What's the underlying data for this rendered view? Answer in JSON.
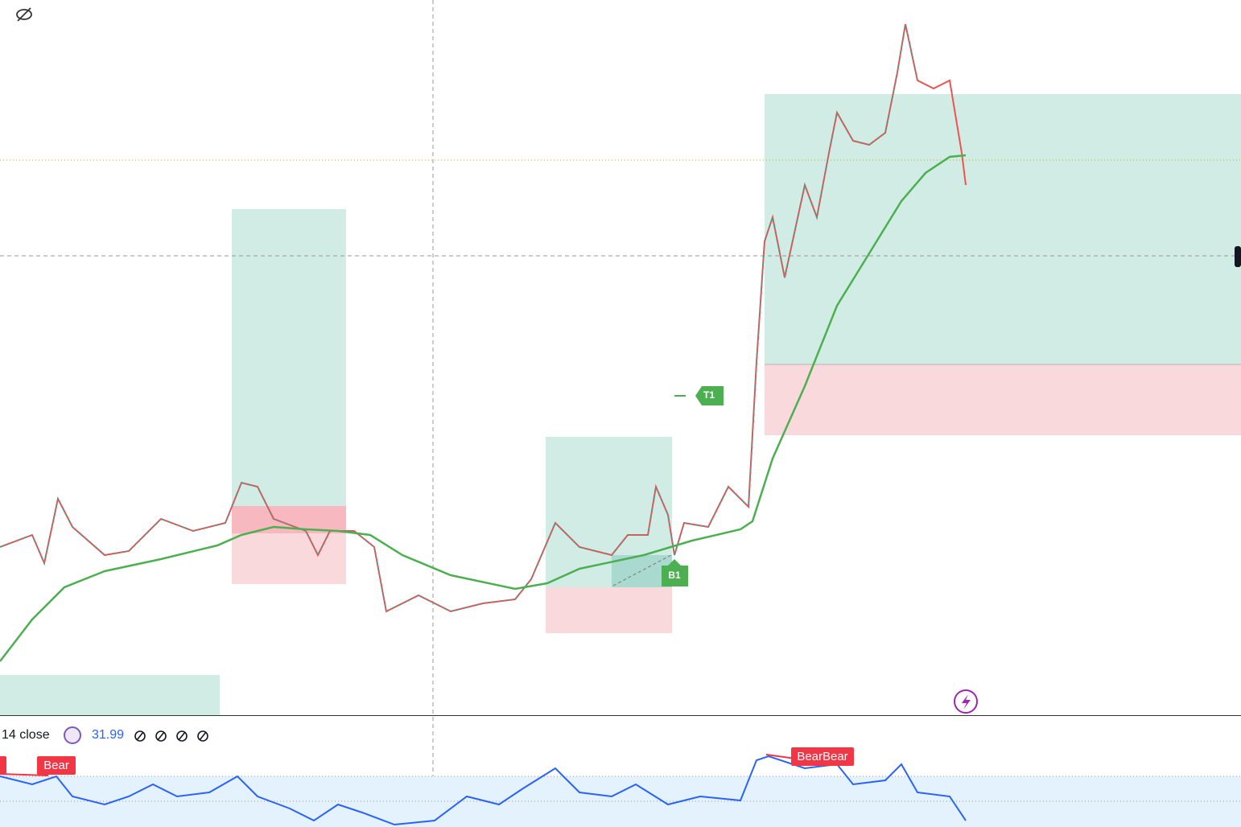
{
  "indicator": {
    "label": "14 close",
    "value": "31.99"
  },
  "rsi_labels": [
    "Bear",
    "BearBear"
  ],
  "trade_labels": [
    "T1",
    "B1"
  ]
}
